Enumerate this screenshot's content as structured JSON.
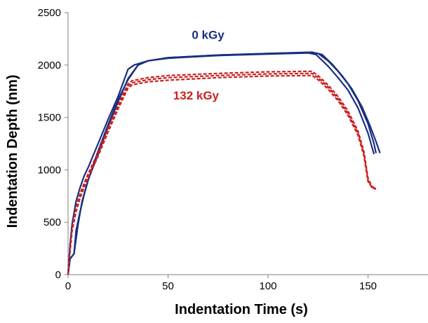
{
  "chart_data": {
    "type": "line",
    "xlabel": "Indentation Time (s)",
    "ylabel": "Indentation Depth (nm)",
    "xlim": [
      0,
      180
    ],
    "ylim": [
      0,
      2500
    ],
    "x_ticks": [
      0,
      50,
      100,
      150
    ],
    "y_ticks": [
      0,
      500,
      1000,
      1500,
      2000,
      2500
    ],
    "grid": false,
    "legend": "none",
    "annotations": [
      {
        "text": "0 kGy",
        "color": "#1a2f80",
        "x": 70,
        "y": 2250
      },
      {
        "text": "132 kGy",
        "color": "#cc2020",
        "x": 64,
        "y": 1670
      }
    ],
    "series": [
      {
        "group": "0 kGy",
        "color": "#1a2f80",
        "dash": false,
        "x": [
          0,
          1,
          2,
          4,
          6,
          8,
          10,
          15,
          20,
          25,
          30,
          33,
          40,
          50,
          75,
          100,
          120,
          124,
          130,
          135,
          140,
          145,
          150,
          153
        ],
        "y": [
          0,
          280,
          480,
          700,
          830,
          940,
          1020,
          1250,
          1480,
          1700,
          1960,
          2000,
          2040,
          2065,
          2090,
          2105,
          2115,
          2100,
          1990,
          1880,
          1760,
          1590,
          1350,
          1150
        ]
      },
      {
        "group": "0 kGy",
        "color": "#1a2f80",
        "dash": false,
        "x": [
          0,
          1,
          3,
          4,
          6,
          8,
          10,
          15,
          20,
          25,
          30,
          35,
          40,
          50,
          75,
          100,
          121,
          125,
          130,
          135,
          140,
          145,
          150,
          153,
          154
        ],
        "y": [
          0,
          150,
          200,
          420,
          600,
          760,
          900,
          1180,
          1430,
          1670,
          1860,
          2000,
          2040,
          2070,
          2095,
          2110,
          2120,
          2110,
          2040,
          1940,
          1820,
          1660,
          1440,
          1250,
          1160
        ]
      },
      {
        "group": "0 kGy",
        "color": "#1a2f80",
        "dash": false,
        "x": [
          0,
          1,
          3,
          5,
          7,
          10,
          15,
          20,
          25,
          30,
          35,
          40,
          50,
          75,
          100,
          122,
          127,
          132,
          137,
          142,
          147,
          151,
          154,
          156
        ],
        "y": [
          0,
          150,
          200,
          480,
          700,
          900,
          1150,
          1410,
          1650,
          1870,
          2000,
          2040,
          2070,
          2095,
          2110,
          2122,
          2100,
          2010,
          1900,
          1770,
          1600,
          1420,
          1270,
          1160
        ]
      },
      {
        "group": "132 kGy",
        "color": "#cc2020",
        "dash": true,
        "x": [
          0,
          1,
          2,
          4,
          6,
          8,
          10,
          15,
          20,
          25,
          30,
          32,
          40,
          50,
          75,
          100,
          122,
          125,
          130,
          135,
          140,
          145,
          148,
          150,
          152,
          154
        ],
        "y": [
          0,
          230,
          430,
          620,
          750,
          850,
          940,
          1150,
          1380,
          1600,
          1800,
          1830,
          1860,
          1880,
          1900,
          1915,
          1920,
          1880,
          1790,
          1680,
          1540,
          1350,
          1150,
          900,
          830,
          820
        ]
      },
      {
        "group": "132 kGy",
        "color": "#cc2020",
        "dash": true,
        "x": [
          0,
          1,
          2,
          4,
          6,
          8,
          10,
          15,
          20,
          25,
          30,
          32,
          40,
          50,
          75,
          100,
          122,
          125,
          130,
          135,
          140,
          145,
          148,
          150,
          152,
          154
        ],
        "y": [
          0,
          220,
          410,
          600,
          730,
          830,
          920,
          1130,
          1360,
          1580,
          1780,
          1810,
          1840,
          1855,
          1880,
          1895,
          1900,
          1860,
          1770,
          1660,
          1520,
          1330,
          1130,
          890,
          830,
          815
        ]
      },
      {
        "group": "132 kGy",
        "color": "#cc2020",
        "dash": true,
        "x": [
          0,
          1,
          2,
          4,
          6,
          8,
          10,
          15,
          20,
          25,
          30,
          32,
          40,
          50,
          75,
          100,
          122,
          125,
          130,
          135,
          140,
          145,
          148,
          150,
          152,
          154
        ],
        "y": [
          0,
          240,
          450,
          640,
          770,
          870,
          960,
          1170,
          1400,
          1620,
          1820,
          1850,
          1880,
          1900,
          1920,
          1935,
          1940,
          1900,
          1810,
          1700,
          1560,
          1370,
          1170,
          920,
          840,
          825
        ]
      }
    ]
  }
}
